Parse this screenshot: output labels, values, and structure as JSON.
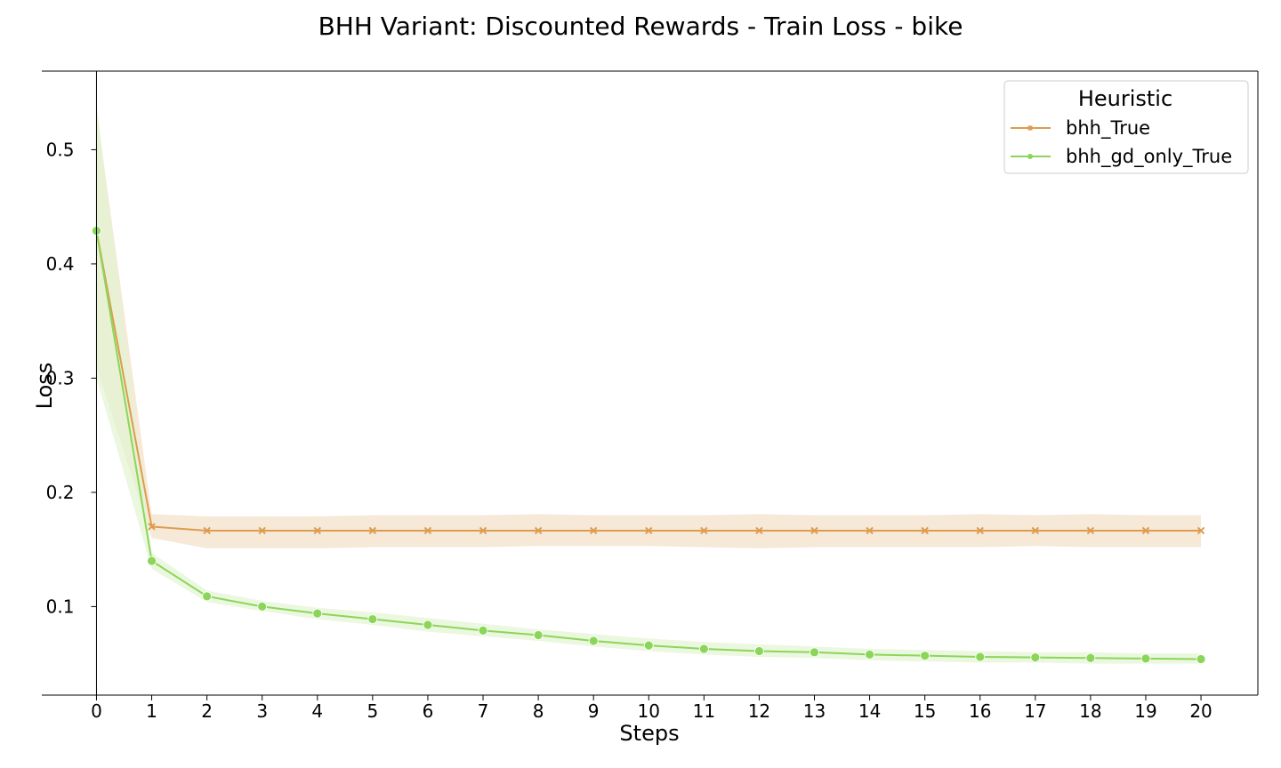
{
  "chart_data": {
    "type": "line",
    "title": "BHH Variant: Discounted Rewards - Train Loss - bike",
    "xlabel": "Steps",
    "ylabel": "Loss",
    "x": [
      0,
      1,
      2,
      3,
      4,
      5,
      6,
      7,
      8,
      9,
      10,
      11,
      12,
      13,
      14,
      15,
      16,
      17,
      18,
      19,
      20
    ],
    "xticks": [
      "0",
      "1",
      "2",
      "3",
      "4",
      "5",
      "6",
      "7",
      "8",
      "9",
      "10",
      "11",
      "12",
      "13",
      "14",
      "15",
      "16",
      "17",
      "18",
      "19",
      "20"
    ],
    "yticks": [
      "0.1",
      "0.2",
      "0.3",
      "0.4",
      "0.5"
    ],
    "xlim": [
      -0.99,
      21.03
    ],
    "ylim": [
      0.0225,
      0.5688
    ],
    "grid": false,
    "legend": {
      "title": "Heuristic",
      "placement": "top-right"
    },
    "series": [
      {
        "name": "bhh_True",
        "color": "#dd9c4f",
        "band_color": "#f5e8d6",
        "marker": "x",
        "values": [
          0.429,
          0.17,
          0.1665,
          0.1665,
          0.1665,
          0.1665,
          0.1665,
          0.1665,
          0.1665,
          0.1665,
          0.1665,
          0.1665,
          0.1665,
          0.1665,
          0.1665,
          0.1665,
          0.1665,
          0.1665,
          0.1665,
          0.1665,
          0.1665
        ],
        "ci_low": [
          0.31,
          0.16,
          0.151,
          0.151,
          0.151,
          0.152,
          0.152,
          0.152,
          0.153,
          0.153,
          0.153,
          0.152,
          0.151,
          0.152,
          0.152,
          0.152,
          0.152,
          0.153,
          0.152,
          0.152,
          0.152
        ],
        "ci_high": [
          0.535,
          0.181,
          0.179,
          0.179,
          0.179,
          0.18,
          0.18,
          0.18,
          0.181,
          0.18,
          0.18,
          0.18,
          0.181,
          0.18,
          0.18,
          0.18,
          0.181,
          0.18,
          0.181,
          0.18,
          0.18
        ]
      },
      {
        "name": "bhh_gd_only_True",
        "color": "#8bd65a",
        "band_color": "#e2f4d2",
        "marker": "circle",
        "values": [
          0.429,
          0.14,
          0.109,
          0.1,
          0.094,
          0.089,
          0.084,
          0.079,
          0.075,
          0.07,
          0.066,
          0.063,
          0.061,
          0.06,
          0.058,
          0.057,
          0.056,
          0.0555,
          0.055,
          0.0545,
          0.054
        ],
        "ci_low": [
          0.3,
          0.133,
          0.104,
          0.096,
          0.089,
          0.084,
          0.078,
          0.074,
          0.07,
          0.065,
          0.061,
          0.058,
          0.056,
          0.055,
          0.053,
          0.052,
          0.051,
          0.051,
          0.05,
          0.05,
          0.05
        ],
        "ci_high": [
          0.54,
          0.147,
          0.114,
          0.105,
          0.099,
          0.095,
          0.09,
          0.085,
          0.08,
          0.076,
          0.072,
          0.069,
          0.067,
          0.065,
          0.063,
          0.062,
          0.061,
          0.06,
          0.06,
          0.059,
          0.059
        ]
      }
    ]
  }
}
